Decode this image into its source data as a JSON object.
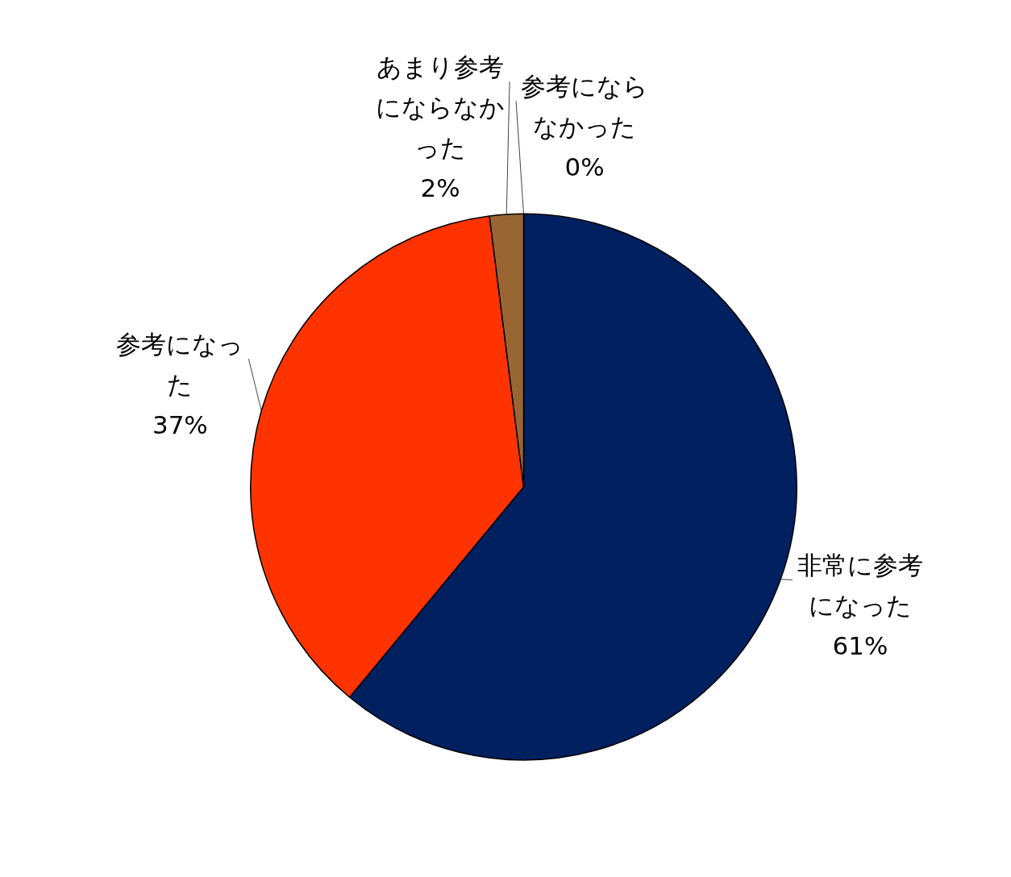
{
  "chart_data": {
    "type": "pie",
    "categories": [
      "非常に参考になった",
      "参考になった",
      "あまり参考にならなかった",
      "参考にならなかった"
    ],
    "values": [
      61,
      37,
      2,
      0
    ],
    "value_labels": [
      "61%",
      "37%",
      "2%",
      "0%"
    ],
    "colors": [
      "#002060",
      "#ff3300",
      "#996633",
      "#7f7f7f"
    ],
    "legend": false
  }
}
